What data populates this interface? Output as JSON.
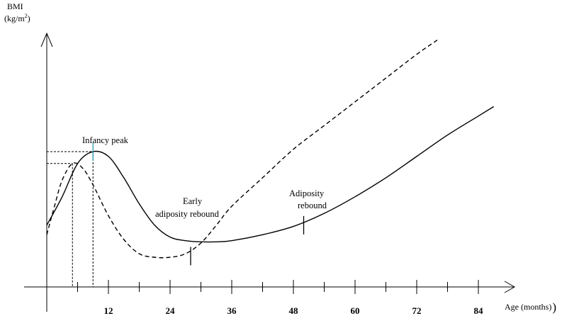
{
  "chart_data": {
    "type": "line",
    "title": "",
    "xlabel": "Age (months)",
    "ylabel": "BMI",
    "ylabel_unit_prefix": "(kg/m",
    "ylabel_unit_sup": "2",
    "ylabel_unit_suffix": ")",
    "xlabel_trailing_paren": ")",
    "x_ticks": [
      "12",
      "24",
      "36",
      "48",
      "60",
      "72",
      "84"
    ],
    "xlim": [
      0,
      88
    ],
    "y_axis_values": "not printed",
    "series": [
      {
        "style": "solid",
        "x": [
          0,
          3,
          6,
          9,
          12,
          15,
          18,
          21,
          24,
          27,
          30,
          33,
          36,
          42,
          48,
          54,
          60,
          66,
          72,
          78,
          84,
          87
        ],
        "y": [
          0.26,
          0.38,
          0.52,
          0.57,
          0.55,
          0.46,
          0.35,
          0.26,
          0.21,
          0.195,
          0.19,
          0.19,
          0.195,
          0.22,
          0.255,
          0.31,
          0.38,
          0.46,
          0.55,
          0.64,
          0.72,
          0.76
        ]
      },
      {
        "style": "dashed",
        "x": [
          0,
          1.5,
          3,
          5,
          7,
          9,
          12,
          15,
          18,
          21,
          24,
          27,
          30,
          33,
          36,
          42,
          48,
          54,
          60,
          66,
          72,
          76
        ],
        "y": [
          0.22,
          0.34,
          0.45,
          0.52,
          0.5,
          0.43,
          0.3,
          0.2,
          0.14,
          0.125,
          0.125,
          0.14,
          0.185,
          0.26,
          0.34,
          0.46,
          0.58,
          0.68,
          0.78,
          0.88,
          0.98,
          1.04
        ]
      }
    ],
    "reference_lines": [
      {
        "style": "dashed",
        "peak_x": 9,
        "peak_y": 0.57
      },
      {
        "style": "dashed",
        "peak_x": 5,
        "peak_y": 0.52
      }
    ],
    "markers": [
      {
        "x": 9,
        "y": 0.57,
        "color": "#2a9db0"
      },
      {
        "x": 28,
        "y": 0.13,
        "color": "#000000"
      },
      {
        "x": 50,
        "y": 0.26,
        "color": "#000000"
      }
    ],
    "annotations": [
      {
        "lines": [
          "Infancy peak"
        ]
      },
      {
        "lines": [
          "Early",
          "adiposity rebound"
        ]
      },
      {
        "lines": [
          "Adiposity",
          "rebound"
        ]
      }
    ]
  }
}
